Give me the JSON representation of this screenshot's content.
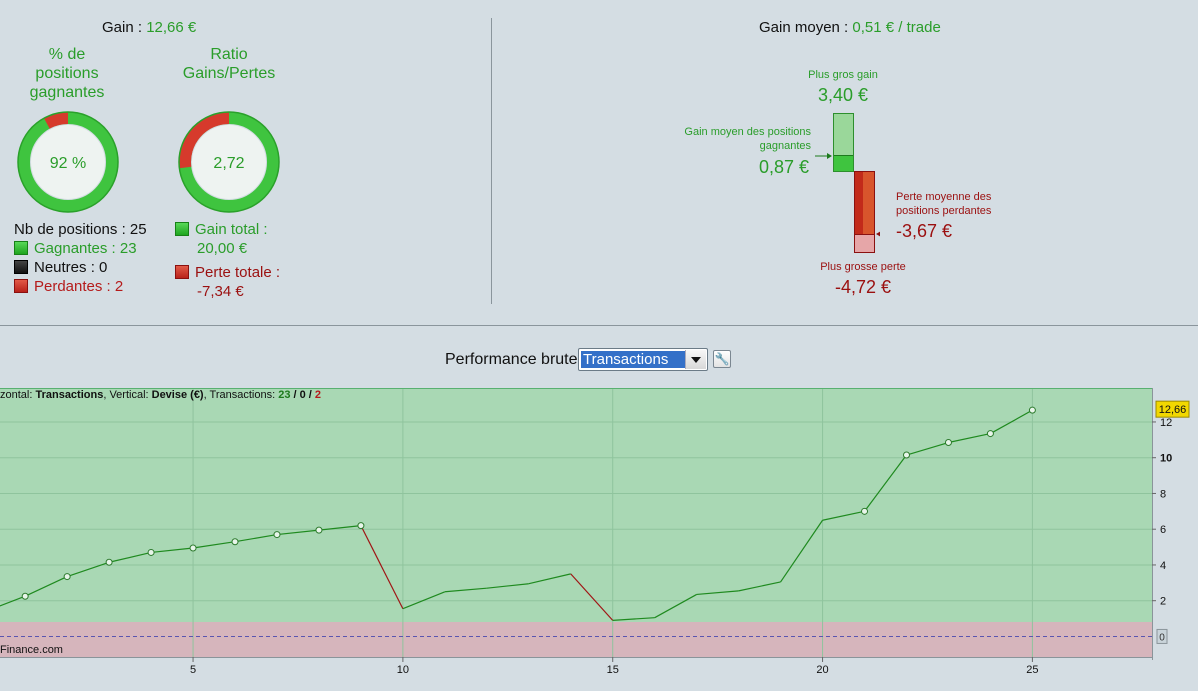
{
  "summary": {
    "gain_label": "Gain :",
    "gain_value": "12,66 €",
    "gain_moyen_label": "Gain moyen :",
    "gain_moyen_value": "0,51 € / trade"
  },
  "donuts": {
    "win_rate": {
      "title_l1": "% de",
      "title_l2": "positions",
      "title_l3": "gagnantes",
      "value_text": "92 %",
      "fraction_green": 0.92
    },
    "ratio": {
      "title_l1": "Ratio",
      "title_l2": "Gains/Pertes",
      "value_text": "2,72",
      "fraction_green": 0.73
    }
  },
  "positions": {
    "count_label": "Nb de positions : 25",
    "winners": "Gagnantes : 23",
    "neutral": "Neutres : 0",
    "losers": "Perdantes : 2"
  },
  "totals": {
    "gain_total_label": "Gain total :",
    "gain_total_value": "20,00 €",
    "perte_totale_label": "Perte totale :",
    "perte_totale_value": "-7,34 €"
  },
  "gain_bar": {
    "plus_gros_gain_label": "Plus gros gain",
    "plus_gros_gain_value": "3,40 €",
    "gain_moyen_pos_l1": "Gain moyen des positions",
    "gain_moyen_pos_l2": "gagnantes",
    "gain_moyen_pos_value": "0,87 €",
    "perte_moyenne_l1": "Perte moyenne des",
    "perte_moyenne_l2": "positions perdantes",
    "perte_moyenne_value": "-3,67 €",
    "plus_grosse_perte_label": "Plus grosse perte",
    "plus_grosse_perte_value": "-4,72 €"
  },
  "chart_header": {
    "title": "Performance brute",
    "select_value": "Transactions",
    "wrench_icon": "wrench-icon"
  },
  "chart_info": {
    "prefix": "zontal: ",
    "horizontal": "Transactions",
    "mid": ", Vertical: ",
    "vertical": "Devise (€)",
    "tx_label": ", Transactions: ",
    "tx_win": "23",
    "tx_sep1": " / ",
    "tx_neutral": "0",
    "tx_sep2": " / ",
    "tx_lose": "2"
  },
  "watermark": "Finance.com",
  "colors": {
    "positive_area": "#a9d8b4",
    "negative_area": "#d6b5bc",
    "line_up": "#1f8a1f",
    "line_down": "#a01515",
    "label_badge": "#f2d800"
  },
  "chart_data": {
    "type": "line",
    "xlabel": "",
    "ylabel": "",
    "x": [
      1,
      2,
      3,
      4,
      5,
      6,
      7,
      8,
      9,
      10,
      11,
      12,
      13,
      14,
      15,
      16,
      17,
      18,
      19,
      20,
      21,
      22,
      23,
      24,
      25
    ],
    "values": [
      2.25,
      3.35,
      4.15,
      4.7,
      4.95,
      5.3,
      5.7,
      5.95,
      6.2,
      1.55,
      2.5,
      2.7,
      2.95,
      3.5,
      0.9,
      1.05,
      2.35,
      2.55,
      3.05,
      6.5,
      7.0,
      10.15,
      10.85,
      11.35,
      12.66
    ],
    "first_point_offscreen": 1.35,
    "marker_x": [
      1,
      2,
      3,
      4,
      5,
      6,
      7,
      8,
      9,
      21,
      22,
      23,
      24,
      25
    ],
    "xlim": [
      0.4,
      27.85
    ],
    "ylim": [
      -1.15,
      13.9
    ],
    "xticks": [
      "5",
      "10",
      "15",
      "20",
      "25"
    ],
    "yticks": [
      "2",
      "4",
      "6",
      "8",
      "10",
      "12"
    ],
    "zero_label": "0",
    "last_value_label": "12,66",
    "grid": true,
    "legend": "none"
  }
}
